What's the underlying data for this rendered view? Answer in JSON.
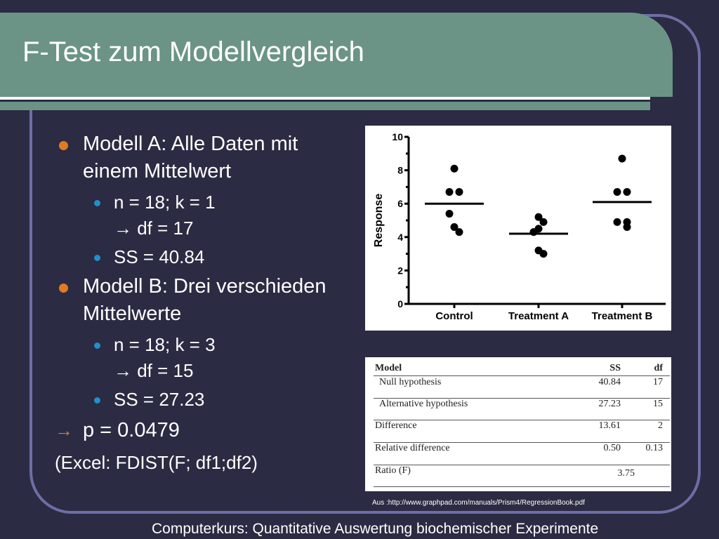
{
  "title": "F-Test zum Modellvergleich",
  "bullets": {
    "model_a": "Modell A: Alle Daten mit einem Mittelwert",
    "model_a_n": "n = 18; k = 1",
    "model_a_df": "→ df = 17",
    "model_a_ss": "SS = 40.84",
    "model_b": "Modell B: Drei verschieden Mittelwerte",
    "model_b_n": "n = 18; k = 3",
    "model_b_df": "→ df = 15",
    "model_b_ss": "SS = 27.23",
    "p_value": "p = 0.0479",
    "excel": "(Excel: FDIST(F; df1;df2)"
  },
  "colors": {
    "background": "#2b2b43",
    "title_band": "#6b9486",
    "orange_bullet": "#e07b1f",
    "blue_bullet": "#1f8fd0",
    "frame": "#6e6ea6"
  },
  "chart_data": {
    "type": "scatter",
    "ylabel": "Response",
    "ylim": [
      0,
      10
    ],
    "yticks": [
      "0",
      "2",
      "4",
      "6",
      "8",
      "10"
    ],
    "categories": [
      "Control",
      "Treatment A",
      "Treatment B"
    ],
    "series": [
      {
        "category": "Control",
        "points": [
          8.1,
          6.7,
          6.7,
          5.4,
          4.6,
          4.3
        ],
        "mean": 6.0
      },
      {
        "category": "Treatment A",
        "points": [
          5.2,
          4.9,
          4.5,
          4.3,
          3.2,
          3.0
        ],
        "mean": 4.2
      },
      {
        "category": "Treatment B",
        "points": [
          8.7,
          6.7,
          6.7,
          4.9,
          4.9,
          4.6
        ],
        "mean": 6.1
      }
    ]
  },
  "table": {
    "headers": {
      "model": "Model",
      "ss": "SS",
      "df": "df"
    },
    "rows": [
      {
        "label": "Null hypothesis",
        "ss": "40.84",
        "df": "17"
      },
      {
        "label": "Alternative hypothesis",
        "ss": "27.23",
        "df": "15"
      },
      {
        "label": "Difference",
        "ss": "13.61",
        "df": "2"
      },
      {
        "label": "Relative difference",
        "ss": "0.50",
        "df": "0.13"
      },
      {
        "label": "Ratio (F)",
        "ss": "3.75",
        "df": ""
      }
    ]
  },
  "source": "Aus :http://www.graphpad.com/manuals/Prism4/RegressionBook.pdf",
  "footer": "Computerkurs: Quantitative Auswertung biochemischer Experimente"
}
